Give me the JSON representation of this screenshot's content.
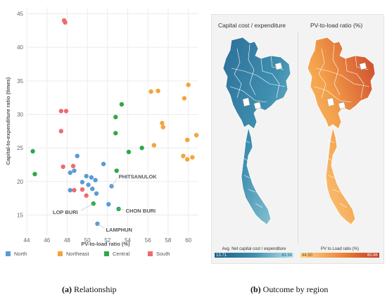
{
  "chart_data": [
    {
      "type": "scatter",
      "title": "",
      "xlabel": "PV-to-load ratio (%)",
      "ylabel": "Capital-to-expenditure ratio (times)",
      "xlim": [
        44,
        61
      ],
      "ylim": [
        12,
        46
      ],
      "xticks": [
        "44",
        "46",
        "48",
        "50",
        "52",
        "54",
        "56",
        "58",
        "60"
      ],
      "yticks": [
        "15",
        "20",
        "25",
        "30",
        "35",
        "40",
        "45"
      ],
      "grid": true,
      "series": [
        {
          "name": "North",
          "color": "#5b9bd5",
          "points": [
            {
              "x": 49.0,
              "y": 23.8
            },
            {
              "x": 51.6,
              "y": 22.6
            },
            {
              "x": 48.7,
              "y": 21.6
            },
            {
              "x": 48.3,
              "y": 21.3
            },
            {
              "x": 49.9,
              "y": 20.8
            },
            {
              "x": 50.4,
              "y": 20.6
            },
            {
              "x": 49.5,
              "y": 19.9
            },
            {
              "x": 50.1,
              "y": 19.5
            },
            {
              "x": 50.8,
              "y": 20.2
            },
            {
              "x": 52.4,
              "y": 19.3
            },
            {
              "x": 50.5,
              "y": 18.9
            },
            {
              "x": 48.3,
              "y": 18.7
            },
            {
              "x": 50.9,
              "y": 18.2
            },
            {
              "x": 52.1,
              "y": 16.6
            },
            {
              "x": 51.0,
              "y": 13.7
            }
          ]
        },
        {
          "name": "Northeast",
          "color": "#f5a33a",
          "points": [
            {
              "x": 60.0,
              "y": 34.4
            },
            {
              "x": 56.3,
              "y": 33.4
            },
            {
              "x": 57.0,
              "y": 33.5
            },
            {
              "x": 59.6,
              "y": 32.4
            },
            {
              "x": 57.4,
              "y": 28.7
            },
            {
              "x": 57.5,
              "y": 28.1
            },
            {
              "x": 60.8,
              "y": 26.9
            },
            {
              "x": 59.9,
              "y": 26.2
            },
            {
              "x": 56.6,
              "y": 25.4
            },
            {
              "x": 59.5,
              "y": 23.8
            },
            {
              "x": 60.4,
              "y": 23.6
            },
            {
              "x": 59.9,
              "y": 23.3
            }
          ]
        },
        {
          "name": "Central",
          "color": "#2ca94a",
          "points": [
            {
              "x": 53.4,
              "y": 31.5
            },
            {
              "x": 52.8,
              "y": 29.6
            },
            {
              "x": 52.8,
              "y": 27.2
            },
            {
              "x": 55.4,
              "y": 25.0
            },
            {
              "x": 54.1,
              "y": 24.4
            },
            {
              "x": 44.6,
              "y": 24.5
            },
            {
              "x": 44.8,
              "y": 21.1
            },
            {
              "x": 52.9,
              "y": 21.6
            },
            {
              "x": 50.6,
              "y": 16.7
            },
            {
              "x": 53.1,
              "y": 15.9
            }
          ]
        },
        {
          "name": "South",
          "color": "#f06b6b",
          "points": [
            {
              "x": 47.7,
              "y": 44.0
            },
            {
              "x": 47.8,
              "y": 43.7
            },
            {
              "x": 47.4,
              "y": 30.5
            },
            {
              "x": 47.9,
              "y": 30.5
            },
            {
              "x": 47.4,
              "y": 27.5
            },
            {
              "x": 48.6,
              "y": 22.3
            },
            {
              "x": 47.6,
              "y": 22.2
            },
            {
              "x": 49.5,
              "y": 18.8
            },
            {
              "x": 48.7,
              "y": 18.7
            },
            {
              "x": 49.9,
              "y": 17.9
            }
          ]
        }
      ],
      "annotations": [
        {
          "text": "PHITSANULOK",
          "x": 52.4,
          "y": 19.3
        },
        {
          "text": "CHON BURI",
          "x": 53.1,
          "y": 15.9
        },
        {
          "text": "LOP BURI",
          "x": 50.6,
          "y": 16.7
        },
        {
          "text": "LAMPHUN",
          "x": 51.0,
          "y": 13.7
        }
      ],
      "legend": "bottom"
    },
    {
      "type": "heatmap",
      "panels": [
        {
          "title": "Capital cost / expenditure",
          "legend_title": "Avg. Net capital cost / expenditure",
          "min_label": "13.71",
          "max_label": "43.98",
          "color_low": "#1b5f87",
          "color_high": "#bfe4e9"
        },
        {
          "title": "PV-to-load ratio (%)",
          "legend_title": "PV to Load ratio (%)",
          "min_label": "44.50",
          "max_label": "60.86",
          "color_low": "#fbd48a",
          "color_high": "#c43a22"
        }
      ]
    }
  ],
  "captions": [
    {
      "label": "(a)",
      "text": " Relationship"
    },
    {
      "label": "(b)",
      "text": " Outcome by region"
    }
  ]
}
